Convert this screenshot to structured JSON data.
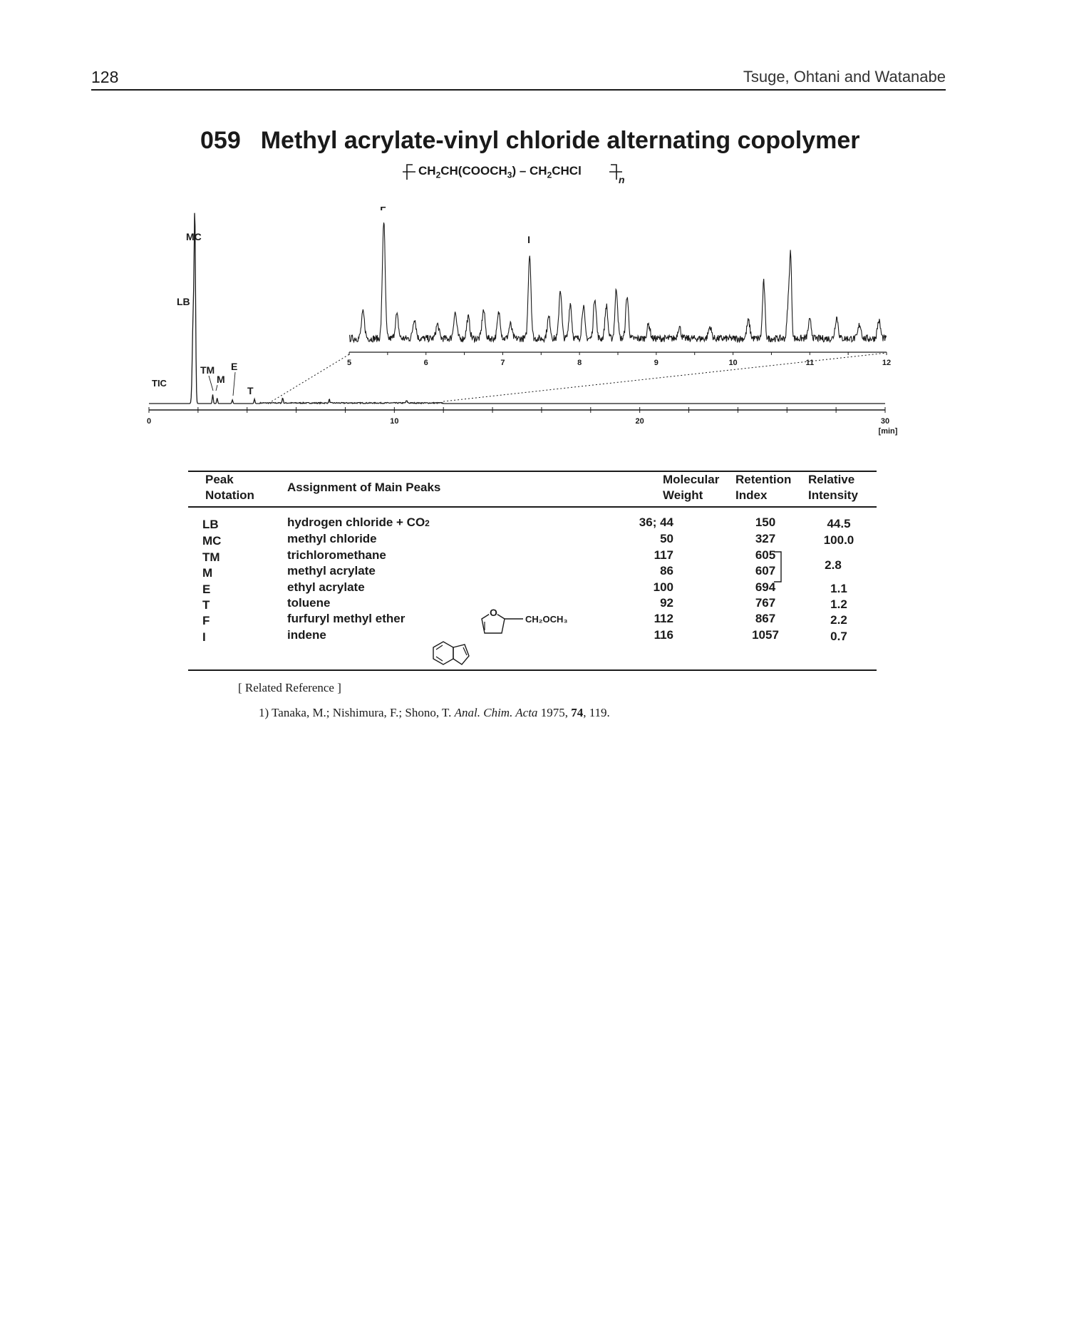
{
  "header": {
    "page_number": "128",
    "running_head": "Tsuge, Ohtani and Watanabe"
  },
  "title": {
    "number": "059",
    "text": "Methyl acrylate-vinyl chloride alternating copolymer"
  },
  "formula": {
    "part1": "CH",
    "sub1": "2",
    "part2": "CH(COOCH",
    "sub2": "3",
    "part3": ") – CH",
    "sub3": "2",
    "part4": "CHCl",
    "repeat": "n"
  },
  "chart_data": {
    "type": "line",
    "trace_label": "TIC",
    "main_axis": {
      "xlim": [
        0,
        30
      ],
      "ticks": [
        "0",
        "10",
        "20",
        "30"
      ],
      "unit": "[min]"
    },
    "inset_axis": {
      "xlim": [
        5,
        12
      ],
      "ticks": [
        "5",
        "6",
        "7",
        "8",
        "9",
        "10",
        "11",
        "12"
      ]
    },
    "main_peaks": [
      {
        "label": "LB",
        "x": 1.8,
        "y": 44.5
      },
      {
        "label": "MC",
        "x": 1.9,
        "y": 100.0
      },
      {
        "label": "TM",
        "x": 2.6,
        "y": 2.8
      },
      {
        "label": "M",
        "x": 2.75,
        "y": 2.8
      },
      {
        "label": "E",
        "x": 3.4,
        "y": 1.1
      },
      {
        "label": "T",
        "x": 4.3,
        "y": 1.2
      }
    ],
    "inset_peaks": [
      {
        "label": "F",
        "x": 5.45,
        "y": 100
      },
      {
        "label": "I",
        "x": 7.35,
        "y": 72
      }
    ]
  },
  "table": {
    "headers": {
      "peak": [
        "Peak",
        "Notation"
      ],
      "assignment": "Assignment of Main Peaks",
      "mw": [
        "Molecular",
        "Weight"
      ],
      "ri": [
        "Retention",
        "Index"
      ],
      "intensity": [
        "Relative",
        "Intensity"
      ]
    },
    "rows": [
      {
        "peak": "LB",
        "assignment": "hydrogen chloride + CO",
        "sub": "2",
        "mw": "36; 44",
        "ri": "150",
        "intensity": "44.5"
      },
      {
        "peak": "MC",
        "assignment": "methyl chloride",
        "mw": "50",
        "ri": "327",
        "intensity": "100.0"
      },
      {
        "peak": "TM",
        "assignment": "trichloromethane",
        "mw": "117",
        "ri": "605"
      },
      {
        "peak": "M",
        "assignment": "methyl acrylate",
        "mw": "86",
        "ri": "607"
      },
      {
        "peak": "E",
        "assignment": "ethyl acrylate",
        "mw": "100",
        "ri": "694",
        "intensity": "1.1"
      },
      {
        "peak": "T",
        "assignment": "toluene",
        "mw": "92",
        "ri": "767",
        "intensity": "1.2"
      },
      {
        "peak": "F",
        "assignment": "furfuryl methyl ether",
        "mw": "112",
        "ri": "867",
        "intensity": "2.2"
      },
      {
        "peak": "I",
        "assignment": "indene",
        "mw": "116",
        "ri": "1057",
        "intensity": "0.7"
      }
    ],
    "merged_intensity_tm_m": "2.8",
    "furan_label": "CH₂OCH₃",
    "furan_atom": "O"
  },
  "reference": {
    "heading": "[ Related Reference ]",
    "item_prefix": "1) Tanaka, M.; Nishimura, F.; Shono, T. ",
    "journal": "Anal. Chim. Acta",
    "year": " 1975, ",
    "volume": "74",
    "pages": ", 119."
  }
}
